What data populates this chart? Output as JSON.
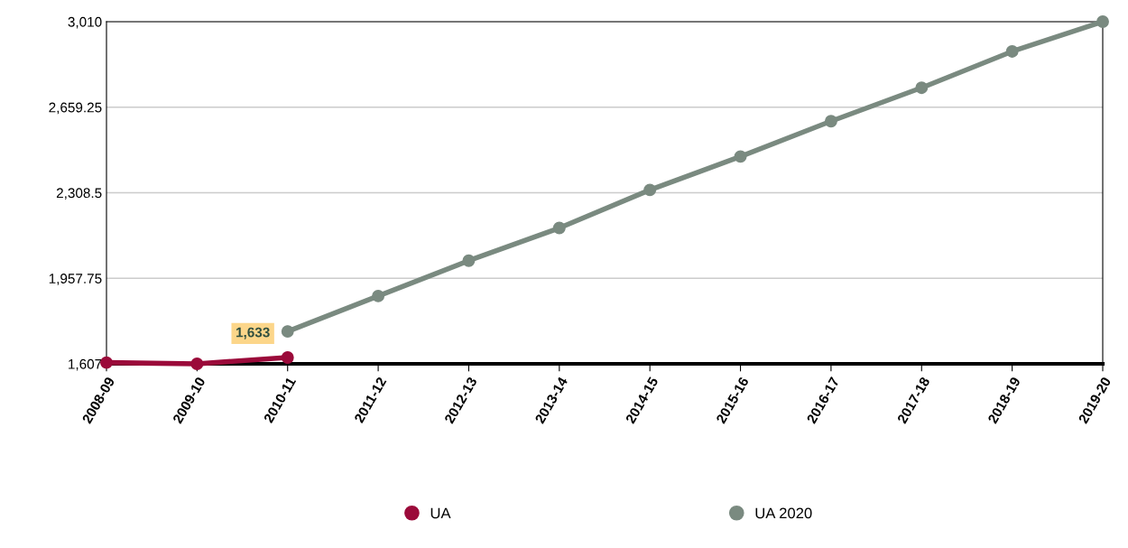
{
  "chart_data": {
    "type": "line",
    "categories": [
      "2008-09",
      "2009-10",
      "2010-11",
      "2011-12",
      "2012-13",
      "2013-14",
      "2014-15",
      "2015-16",
      "2016-17",
      "2017-18",
      "2018-19",
      "2019-20"
    ],
    "series": [
      {
        "name": "UA",
        "color": "#9b0a3a",
        "values": [
          1612,
          1607,
          1633,
          null,
          null,
          null,
          null,
          null,
          null,
          null,
          null,
          null
        ],
        "value_labels": [
          null,
          null,
          "1,633",
          null,
          null,
          null,
          null,
          null,
          null,
          null,
          null,
          null
        ]
      },
      {
        "name": "UA 2020",
        "color": "#7a8a80",
        "values": [
          null,
          null,
          1740,
          1885,
          2030,
          2164,
          2320,
          2457,
          2602,
          2739,
          2888,
          3010
        ]
      }
    ],
    "ylim": [
      1607,
      3010
    ],
    "yticks": [
      {
        "value": 1607,
        "label": "1,607"
      },
      {
        "value": 1957.75,
        "label": "1,957.75"
      },
      {
        "value": 2308.5,
        "label": "2,308.5"
      },
      {
        "value": 2659.25,
        "label": "2,659.25"
      },
      {
        "value": 3010,
        "label": "3,010"
      }
    ],
    "grid": "y",
    "legend": "bottom",
    "marker": "circle",
    "line_style": "solid"
  }
}
